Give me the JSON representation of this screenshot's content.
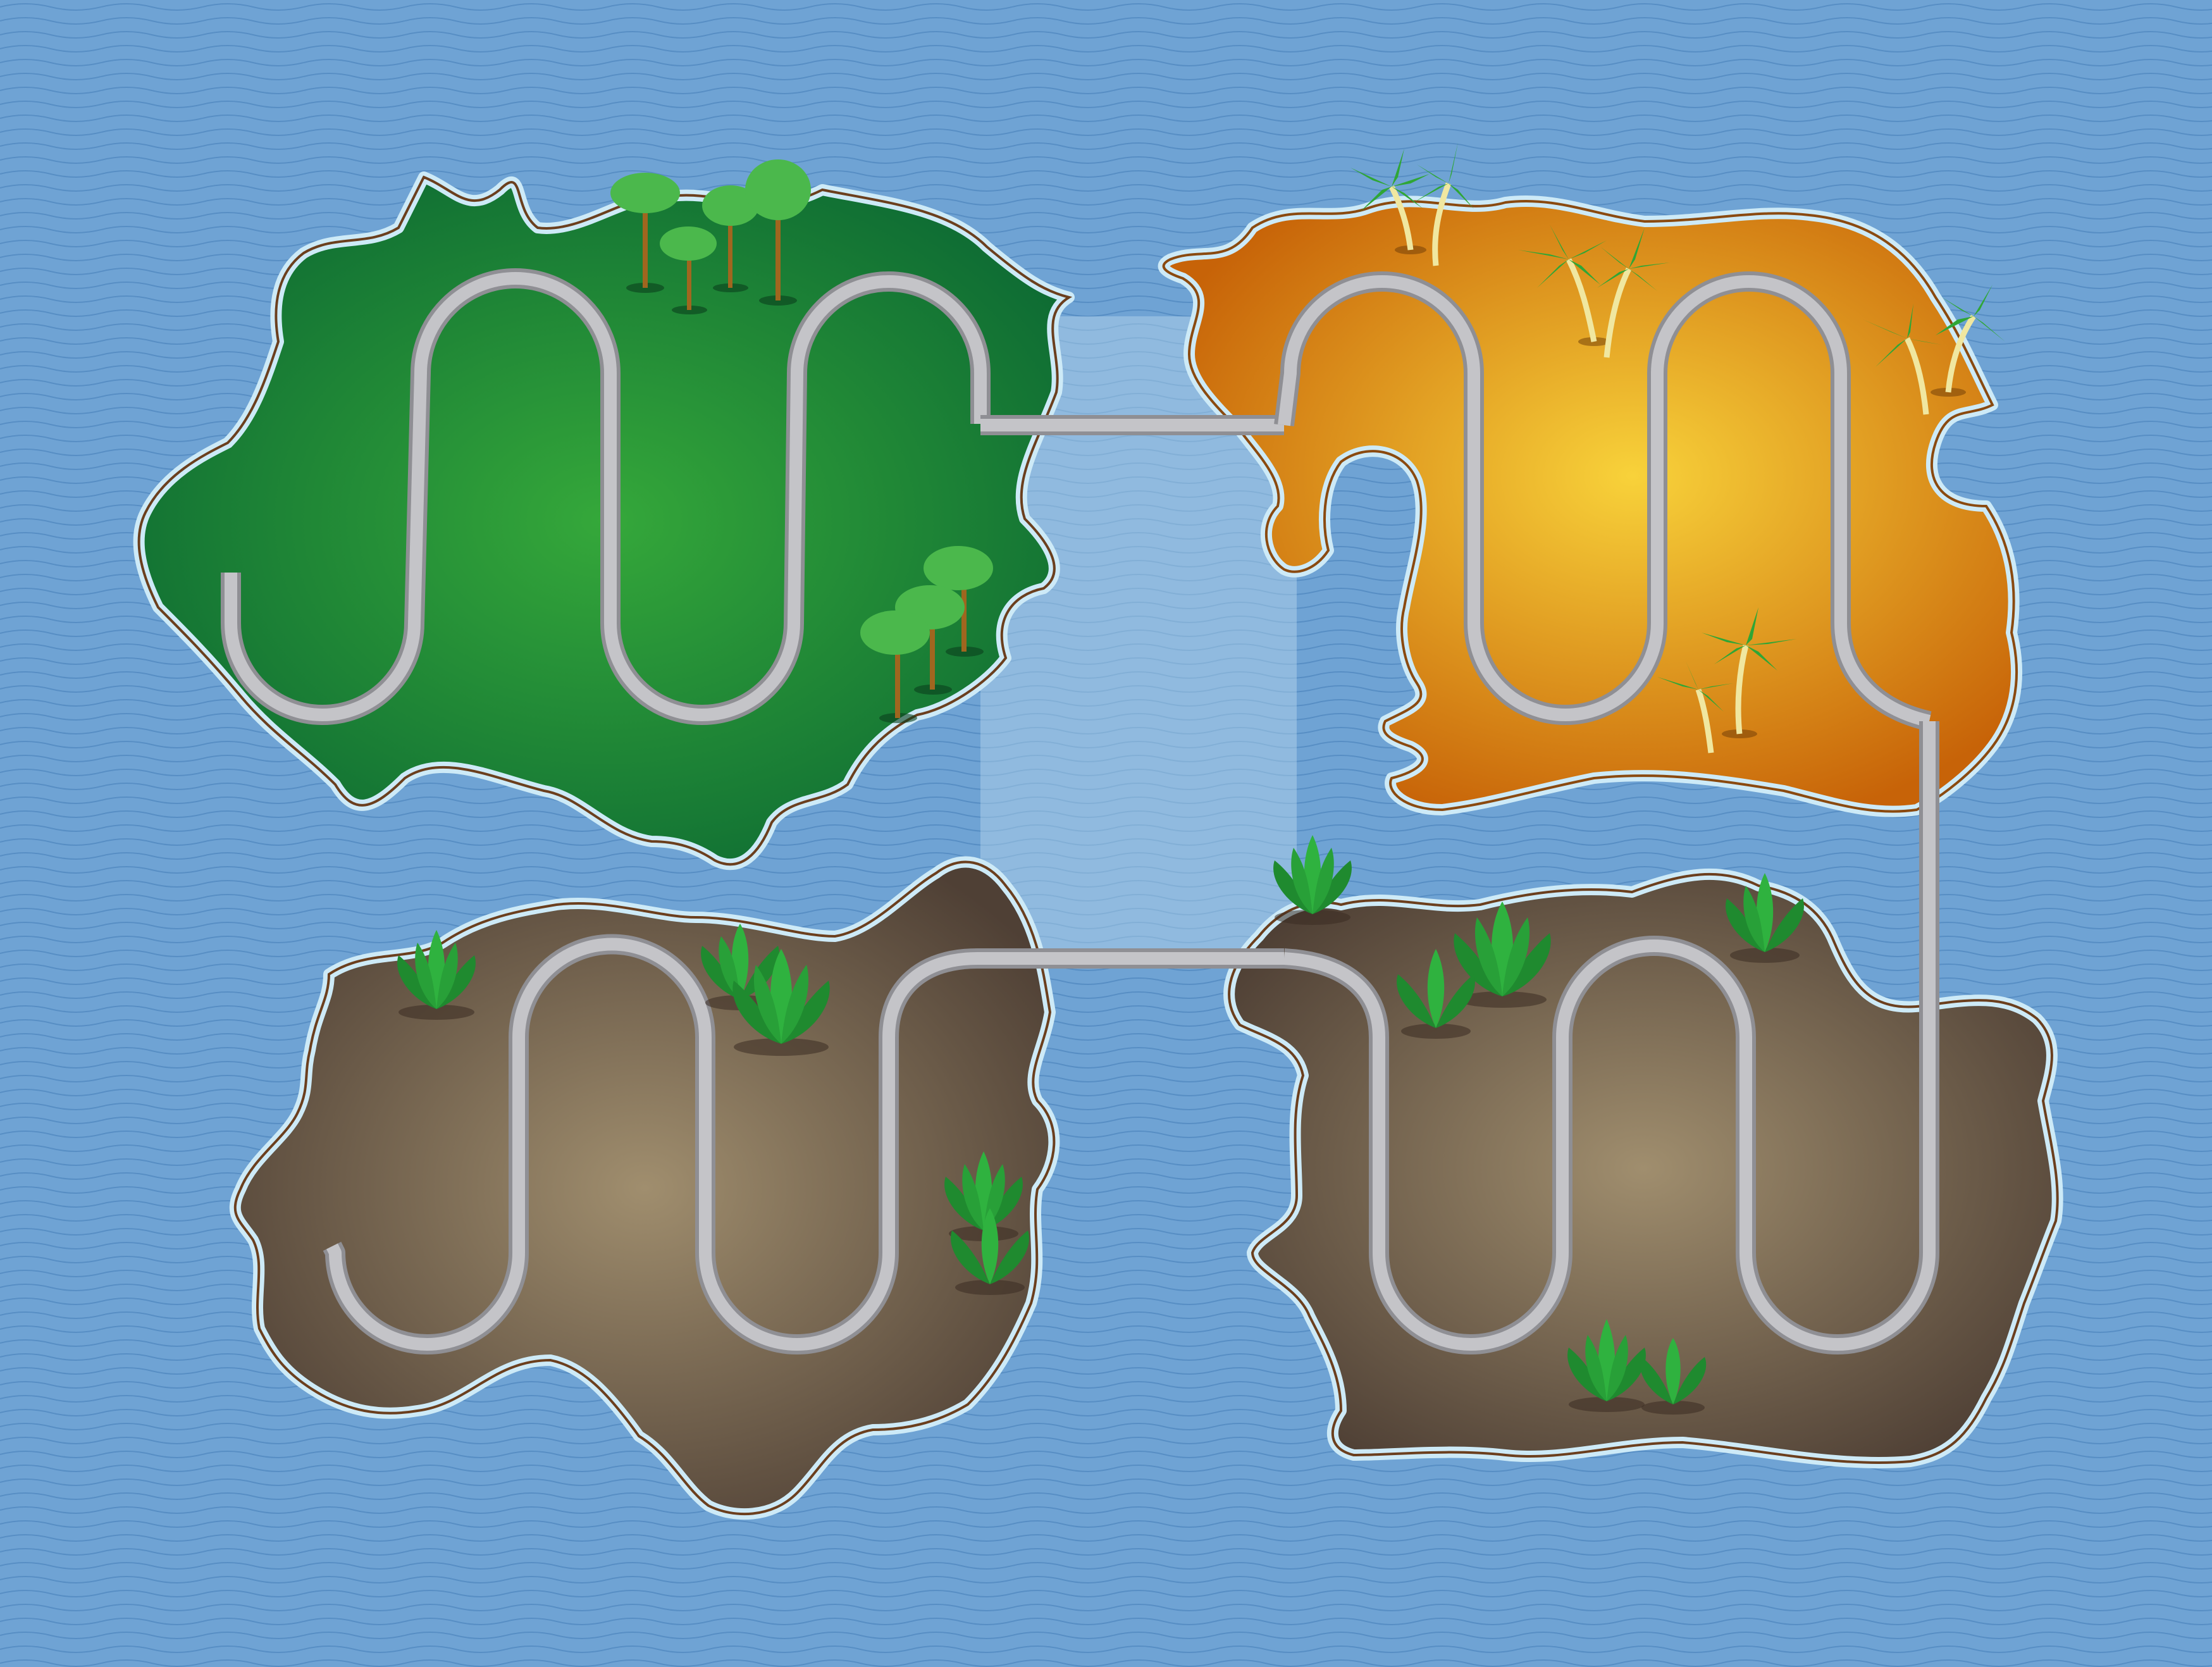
{
  "scene": {
    "type": "level-map",
    "description_visible_text": "",
    "regions": [
      {
        "id": "forest",
        "theme": "green",
        "decor": "trees"
      },
      {
        "id": "desert",
        "theme": "orange",
        "decor": "palms"
      },
      {
        "id": "swamp-left",
        "theme": "brown",
        "decor": "bushes"
      },
      {
        "id": "swamp-right",
        "theme": "brown",
        "decor": "bushes"
      }
    ],
    "path_order": [
      "forest",
      "desert",
      "swamp-right",
      "swamp-left"
    ]
  },
  "colors": {
    "water": "#6fa3d4",
    "wave": "#4f86bf",
    "shore": "#cdeaf7",
    "forest_light": "#35a83a",
    "forest_dark": "#0d6a33",
    "desert_light": "#f8d23a",
    "desert_dark": "#c76308",
    "mud_light": "#a08e6e",
    "mud_dark": "#4f4035",
    "track": "#b9b9bd",
    "track_edge": "#8f8f94"
  }
}
